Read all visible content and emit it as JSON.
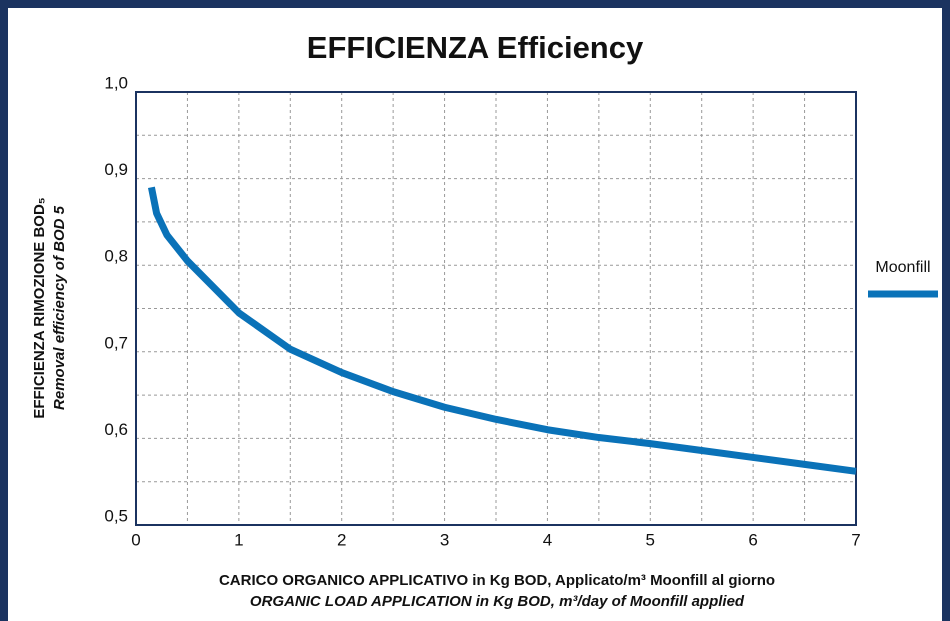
{
  "chart_data": {
    "type": "line",
    "title": "EFFICIENZA Efficiency",
    "ylabel": [
      "EFFICIENZA RIMOZIONE BOD₅",
      "Removal efficiency of BOD 5"
    ],
    "xlabel": [
      "CARICO ORGANICO APPLICATIVO in Kg BOD, Applicato/m³ Moonfill al giorno",
      "ORGANIC LOAD APPLICATION in Kg BOD, m³/day of Moonfill applied"
    ],
    "xlim": [
      0,
      7
    ],
    "ylim": [
      0.5,
      1.0
    ],
    "xticks": [
      0,
      1,
      2,
      3,
      4,
      5,
      6,
      7
    ],
    "yticks": [
      {
        "value": 0.5,
        "label": "0,5"
      },
      {
        "value": 0.6,
        "label": "0,6"
      },
      {
        "value": 0.7,
        "label": "0,7"
      },
      {
        "value": 0.8,
        "label": "0,8"
      },
      {
        "value": 0.9,
        "label": "0,9"
      },
      {
        "value": 1.0,
        "label": "1,0"
      }
    ],
    "grid": true,
    "legend": "right",
    "series": [
      {
        "name": "Moonfill",
        "color": "#0a72b8",
        "x": [
          0.15,
          0.2,
          0.3,
          0.5,
          0.75,
          1,
          1.5,
          2,
          2.5,
          3,
          3.5,
          4,
          4.5,
          5,
          5.5,
          6,
          6.5,
          7
        ],
        "values": [
          0.89,
          0.86,
          0.835,
          0.805,
          0.775,
          0.745,
          0.703,
          0.676,
          0.654,
          0.636,
          0.622,
          0.61,
          0.601,
          0.594,
          0.586,
          0.578,
          0.57,
          0.562
        ]
      }
    ]
  }
}
